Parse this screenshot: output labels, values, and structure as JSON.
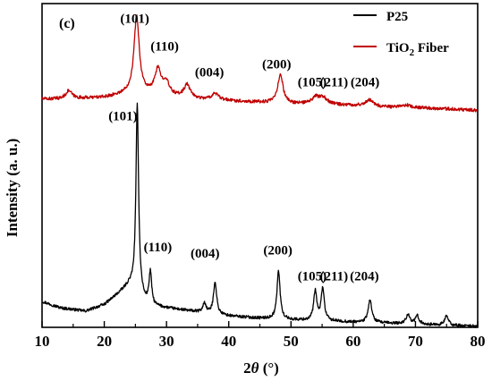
{
  "chart_data": {
    "type": "line",
    "panel_label": "(c)",
    "xlabel": "2θ (°)",
    "ylabel": "Intensity (a. u.)",
    "xlim": [
      10,
      80
    ],
    "x_ticks": [
      10,
      20,
      30,
      40,
      50,
      60,
      70,
      80
    ],
    "y_ticks": [],
    "ylim": [
      0,
      100
    ],
    "grid": false,
    "legend_position": "top-right",
    "series": [
      {
        "name": "P25",
        "color": "#000000",
        "baseline": [
          [
            10,
            8
          ],
          [
            13,
            6
          ],
          [
            17,
            5
          ],
          [
            20,
            7
          ],
          [
            22,
            10
          ],
          [
            24,
            13
          ],
          [
            25.3,
            12
          ],
          [
            26.5,
            8
          ],
          [
            28,
            6.5
          ],
          [
            32,
            5.5
          ],
          [
            36,
            4.5
          ],
          [
            40,
            3.5
          ],
          [
            45,
            2.8
          ],
          [
            50,
            2.3
          ],
          [
            55,
            2
          ],
          [
            60,
            1.6
          ],
          [
            65,
            1.3
          ],
          [
            70,
            1
          ],
          [
            75,
            0.6
          ],
          [
            80,
            0.3
          ]
        ],
        "peaks": [
          {
            "pos": 25.3,
            "height": 57,
            "width": 0.25
          },
          {
            "pos": 27.4,
            "height": 10,
            "width": 0.25
          },
          {
            "pos": 36.1,
            "height": 3,
            "width": 0.3
          },
          {
            "pos": 37.8,
            "height": 10,
            "width": 0.3
          },
          {
            "pos": 48.0,
            "height": 15,
            "width": 0.3
          },
          {
            "pos": 53.9,
            "height": 9,
            "width": 0.3
          },
          {
            "pos": 55.1,
            "height": 10,
            "width": 0.3
          },
          {
            "pos": 62.7,
            "height": 7,
            "width": 0.35
          },
          {
            "pos": 68.8,
            "height": 3,
            "width": 0.35
          },
          {
            "pos": 70.3,
            "height": 2.5,
            "width": 0.35
          },
          {
            "pos": 75.0,
            "height": 3,
            "width": 0.35
          }
        ]
      },
      {
        "name": "TiO2 Fiber",
        "color": "#c00000",
        "baseline": [
          [
            10,
            70.5
          ],
          [
            13,
            70.5
          ],
          [
            20,
            71
          ],
          [
            23,
            72
          ],
          [
            25.2,
            73
          ],
          [
            27,
            72
          ],
          [
            30,
            71.5
          ],
          [
            35,
            70.5
          ],
          [
            40,
            70
          ],
          [
            45,
            69.5
          ],
          [
            50,
            69
          ],
          [
            55,
            69
          ],
          [
            60,
            68.5
          ],
          [
            65,
            68
          ],
          [
            70,
            67.8
          ],
          [
            75,
            67.5
          ],
          [
            80,
            67
          ]
        ],
        "peaks": [
          {
            "pos": 14.3,
            "height": 2.5,
            "width": 0.6
          },
          {
            "pos": 25.2,
            "height": 23,
            "width": 0.5
          },
          {
            "pos": 28.6,
            "height": 7.5,
            "width": 0.6
          },
          {
            "pos": 29.9,
            "height": 4,
            "width": 0.6
          },
          {
            "pos": 33.3,
            "height": 4,
            "width": 0.6
          },
          {
            "pos": 37.8,
            "height": 2,
            "width": 0.6
          },
          {
            "pos": 48.3,
            "height": 9,
            "width": 0.5
          },
          {
            "pos": 54.0,
            "height": 2,
            "width": 0.7
          },
          {
            "pos": 55.2,
            "height": 1.8,
            "width": 0.7
          },
          {
            "pos": 62.6,
            "height": 2,
            "width": 0.8
          },
          {
            "pos": 68.5,
            "height": 0.8,
            "width": 0.8
          }
        ]
      }
    ],
    "annotations": [
      {
        "text": "(101)",
        "x": 24.9,
        "y": 94
      },
      {
        "text": "(110)",
        "x": 29.7,
        "y": 85.5
      },
      {
        "text": "(004)",
        "x": 36.9,
        "y": 77.5
      },
      {
        "text": "(200)",
        "x": 47.7,
        "y": 80
      },
      {
        "text": "(105)",
        "x": 53.4,
        "y": 74.5
      },
      {
        "text": "(211)",
        "x": 56.9,
        "y": 74.5
      },
      {
        "text": "(204)",
        "x": 61.9,
        "y": 74.5
      },
      {
        "text": "(101)",
        "x": 23.0,
        "y": 64
      },
      {
        "text": "(110)",
        "x": 28.6,
        "y": 23.5
      },
      {
        "text": "(004)",
        "x": 36.2,
        "y": 21.5
      },
      {
        "text": "(200)",
        "x": 47.9,
        "y": 22.5
      },
      {
        "text": "(105)",
        "x": 53.4,
        "y": 14.5
      },
      {
        "text": "(211)",
        "x": 56.9,
        "y": 14.5
      },
      {
        "text": "(204)",
        "x": 61.8,
        "y": 14.5
      }
    ]
  }
}
